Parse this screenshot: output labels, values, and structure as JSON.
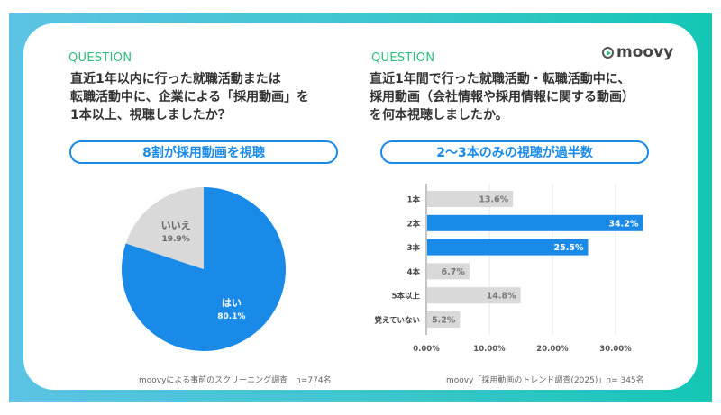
{
  "brand": "moovy",
  "left": {
    "label": "QUESTION",
    "question": "直近1年以内に行った就職活動または\n転職活動中に、企業による「採用動画」を\n1本以上、視聴しましたか？",
    "headline": "8割が採用動画を視聴",
    "source": "moovyによる事前のスクリーニング調査　n=774名"
  },
  "right": {
    "label": "QUESTION",
    "question": " 直近1年間で行った就職活動・転職活動中に、\n採用動画（会社情報や採用情報に関する動画）\nを何本視聴しましたか。",
    "headline": "2〜3本のみの視聴が過半数",
    "source": "moovy「採用動画のトレンド調査(2025)」n= 345名"
  },
  "colors": {
    "accent": "#1a8ae8",
    "gray": "#d9d9d9",
    "question": "#2dbd7a"
  },
  "chart_data": [
    {
      "type": "pie",
      "slices": [
        {
          "name": "はい",
          "value": 80.1,
          "label": "80.1%",
          "color": "#1a8ae8"
        },
        {
          "name": "いいえ",
          "value": 19.9,
          "label": "19.9%",
          "color": "#d9d9d9"
        }
      ]
    },
    {
      "type": "bar",
      "orientation": "horizontal",
      "categories": [
        "1本",
        "2本",
        "3本",
        "4本",
        "5本以上",
        "覚えていない"
      ],
      "values": [
        13.6,
        34.2,
        25.5,
        6.7,
        14.8,
        5.2
      ],
      "data_labels": [
        "13.6%",
        "34.2%",
        "25.5%",
        "6.7%",
        "14.8%",
        "5.2%"
      ],
      "highlight": [
        false,
        true,
        true,
        false,
        false,
        false
      ],
      "xlim": [
        0,
        34.2
      ],
      "xticks": [
        0,
        10,
        20,
        30
      ],
      "xtick_labels": [
        "0.00%",
        "10.00%",
        "20.00%",
        "30.00%"
      ],
      "grid": true
    }
  ]
}
